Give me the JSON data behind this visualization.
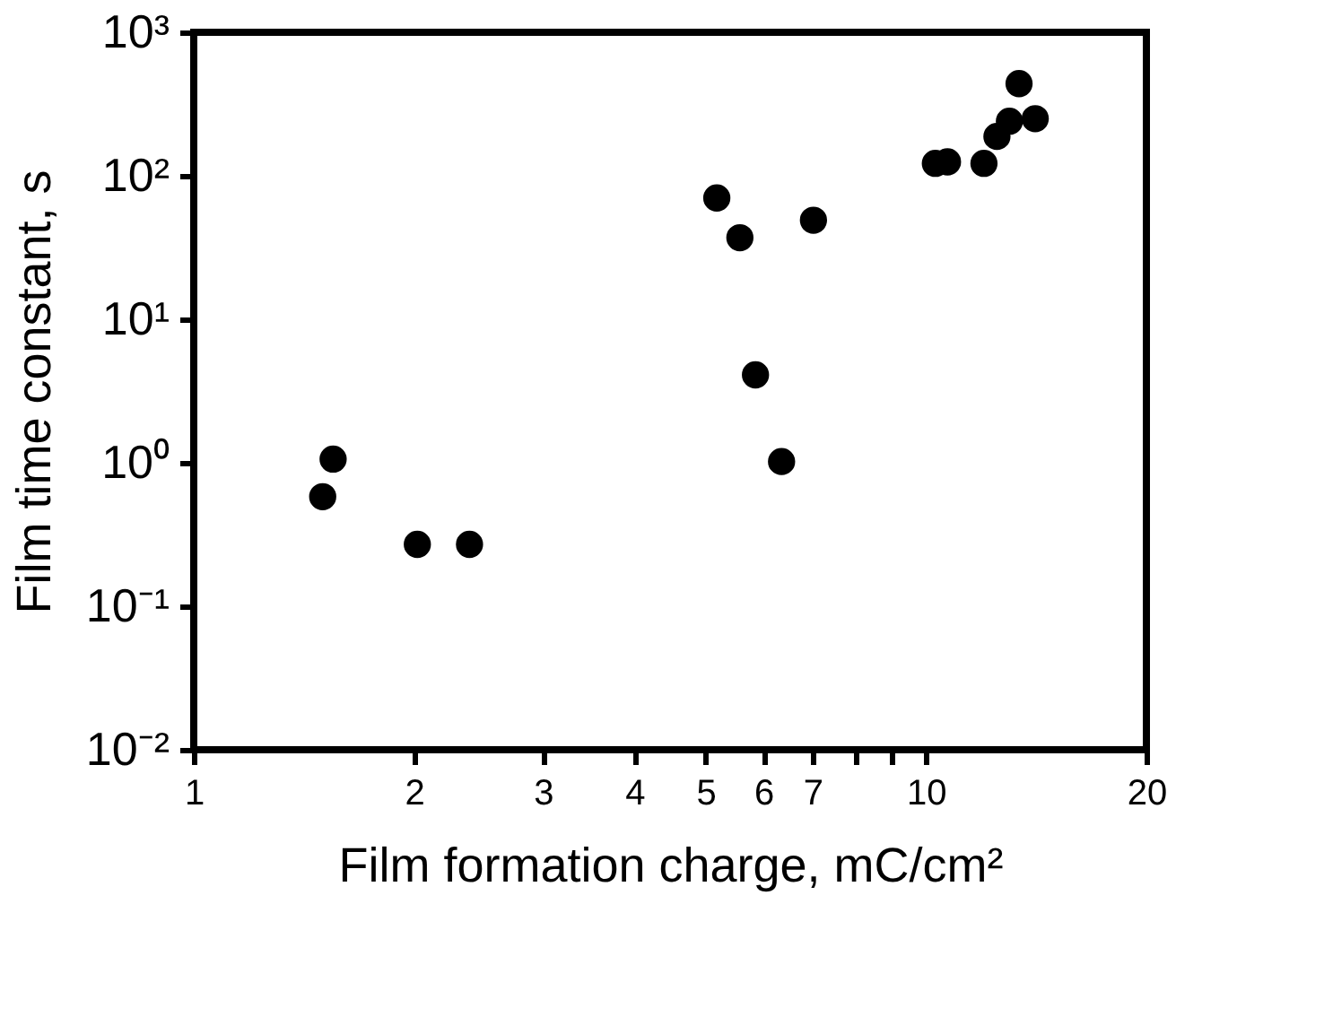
{
  "chart_data": {
    "type": "scatter",
    "xlabel": "Film formation charge, mC/cm²",
    "ylabel": "Film time constant, s",
    "log": "xy",
    "grid": false,
    "marker": "circle",
    "xlim": [
      1,
      20
    ],
    "ylim": [
      0.01,
      1000
    ],
    "xticks": [
      {
        "value": 1,
        "label": "1"
      },
      2,
      3,
      4,
      5,
      6,
      7,
      {
        "value": 8,
        "label": null
      },
      {
        "value": 9,
        "label": null
      },
      {
        "value": 10,
        "label": "10"
      },
      20
    ],
    "yticks": [
      {
        "value": 0.01,
        "label": "10⁻²"
      },
      {
        "value": 0.1,
        "label": "10⁻¹"
      },
      {
        "value": 1,
        "label": "10⁰"
      },
      {
        "value": 10,
        "label": "10¹"
      },
      {
        "value": 100,
        "label": "10²"
      },
      {
        "value": 1000,
        "label": "10³"
      }
    ],
    "series": [
      {
        "color": "#000000",
        "x": [
          1.5,
          1.55,
          2.02,
          2.38,
          5.18,
          5.57,
          5.85,
          6.35,
          7.02,
          10.3,
          10.7,
          12.0,
          12.5,
          13.0,
          13.4,
          14.1
        ],
        "values": [
          0.58,
          1.06,
          0.27,
          0.27,
          70,
          37,
          4.1,
          1.02,
          49,
          122,
          125,
          122,
          188,
          240,
          439,
          250
        ]
      }
    ]
  }
}
